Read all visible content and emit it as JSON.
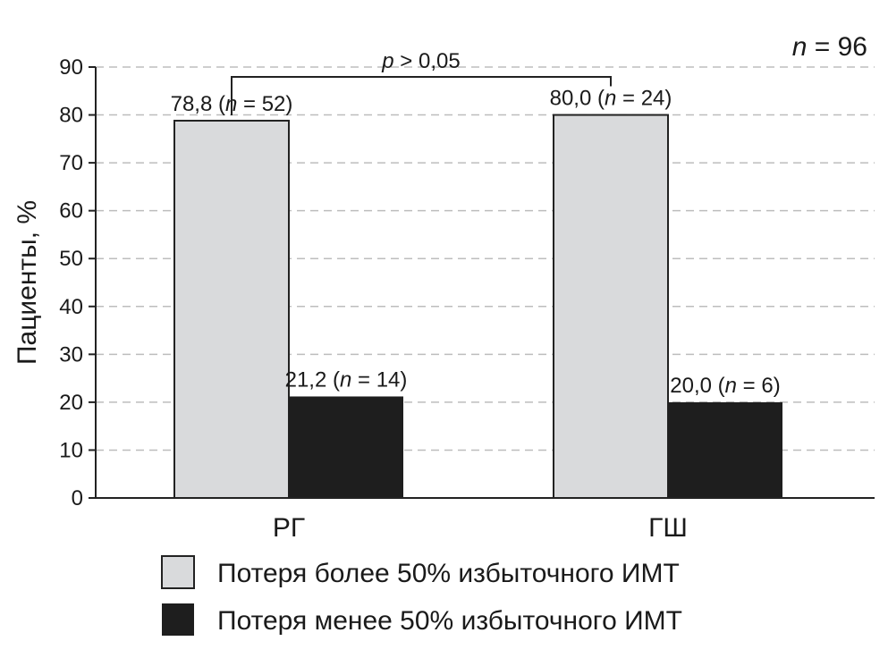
{
  "chart_data": {
    "type": "bar",
    "ylabel": "Пациенты, %",
    "ylim": [
      0,
      90
    ],
    "yticks": [
      0,
      10,
      20,
      30,
      40,
      50,
      60,
      70,
      80,
      90
    ],
    "grid": true,
    "categories": [
      "РГ",
      "ГШ"
    ],
    "series": [
      {
        "name": "Потеря более 50% избыточного ИМТ",
        "values": [
          78.8,
          80.0
        ],
        "labels": [
          {
            "value": "78,8",
            "n": "52"
          },
          {
            "value": "80,0",
            "n": "24"
          }
        ],
        "color": "#d9dadc"
      },
      {
        "name": "Потеря менее 50% избыточного ИМТ",
        "values": [
          21.2,
          20.0
        ],
        "labels": [
          {
            "value": "21,2",
            "n": "14"
          },
          {
            "value": "20,0",
            "n": "6"
          }
        ],
        "color": "#1e1e1e"
      }
    ],
    "annotations": {
      "n_total_var": "n",
      "n_total_value": "96",
      "p_var": "p",
      "p_text": "0,05"
    },
    "legend_position": "bottom"
  }
}
